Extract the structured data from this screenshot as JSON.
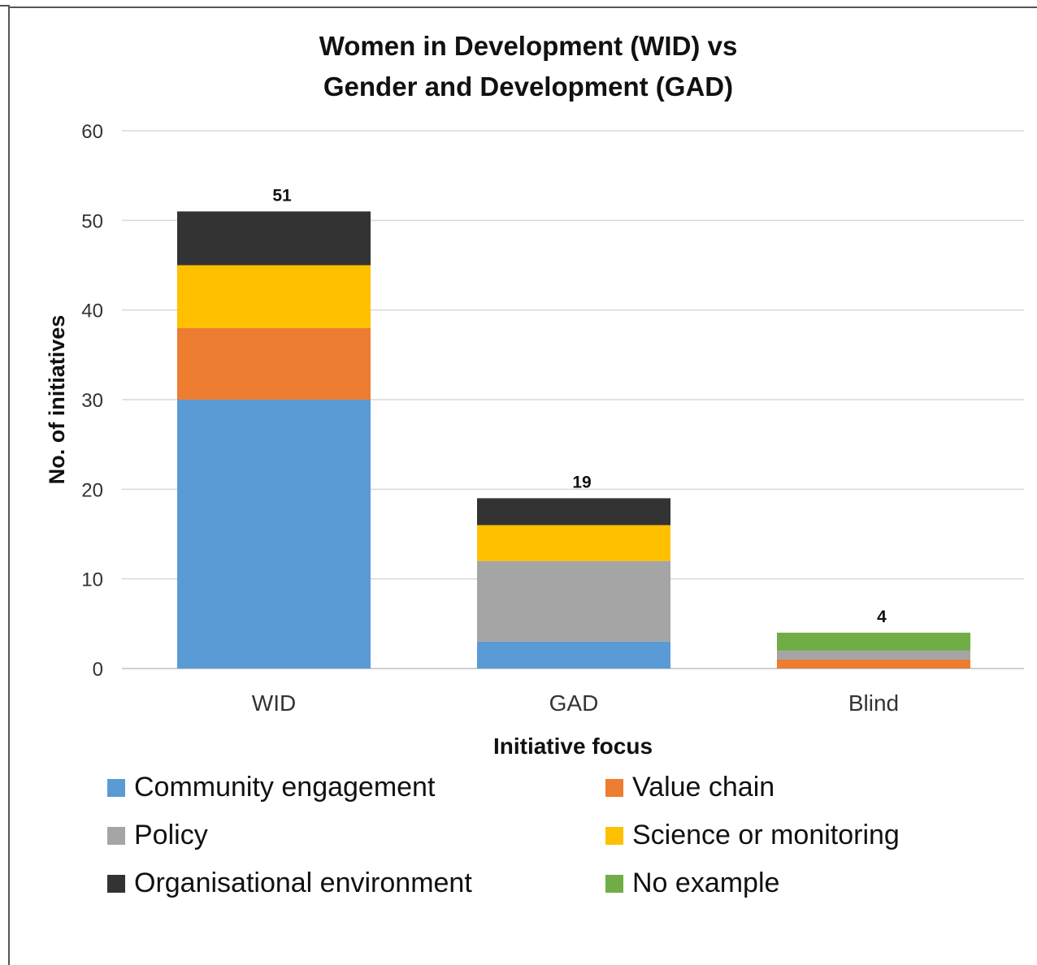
{
  "chart_data": {
    "type": "bar",
    "stacked": true,
    "title_lines": [
      "Women in Development (WID) vs",
      "Gender and Development (GAD)"
    ],
    "xlabel": "Initiative focus",
    "ylabel": "No. of initiatives",
    "categories": [
      "WID",
      "GAD",
      "Blind"
    ],
    "ylim": [
      0,
      60
    ],
    "yticks": [
      0,
      10,
      20,
      30,
      40,
      50,
      60
    ],
    "grid": true,
    "legend_position": "bottom",
    "series": [
      {
        "name": "Community engagement",
        "color": "#5B9BD5",
        "values": [
          30,
          3,
          0
        ]
      },
      {
        "name": "Value chain",
        "color": "#ED7D31",
        "values": [
          8,
          0,
          1
        ]
      },
      {
        "name": "Policy",
        "color": "#A5A5A5",
        "values": [
          0,
          9,
          1
        ]
      },
      {
        "name": "Science or monitoring",
        "color": "#FFC000",
        "values": [
          7,
          4,
          0
        ]
      },
      {
        "name": "Organisational environment",
        "color": "#333333",
        "values": [
          6,
          3,
          0
        ]
      },
      {
        "name": "No example",
        "color": "#70AD47",
        "values": [
          0,
          0,
          2
        ]
      }
    ],
    "totals": [
      51,
      19,
      4
    ],
    "stack_order": [
      "Community engagement",
      "Value chain",
      "Policy",
      "Science or monitoring",
      "Organisational environment",
      "No example"
    ]
  }
}
